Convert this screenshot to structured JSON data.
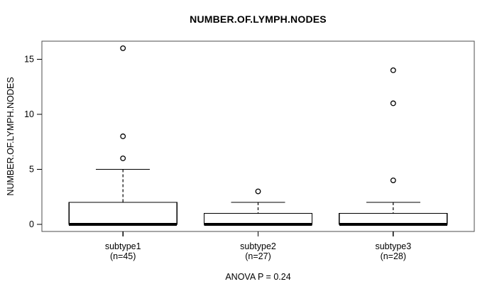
{
  "figure": {
    "title": "NUMBER.OF.LYMPH.NODES",
    "y_axis_label": "NUMBER.OF.LYMPH.NODES",
    "annotation": "ANOVA P = 0.24"
  },
  "chart_data": {
    "type": "boxplot",
    "title": "NUMBER.OF.LYMPH.NODES",
    "xlabel": "",
    "ylabel": "NUMBER.OF.LYMPH.NODES",
    "ylim": [
      -0.64,
      16.64
    ],
    "yticks": [
      0,
      5,
      10,
      15
    ],
    "grid": false,
    "legend": false,
    "annotation": "ANOVA P = 0.24",
    "groups": [
      {
        "label": "subtype1",
        "sublabel": "(n=45)",
        "n": 45,
        "q1": 0,
        "median": 0,
        "q3": 2,
        "whisker_low": 0,
        "whisker_high": 5,
        "outliers": [
          6,
          8,
          16
        ]
      },
      {
        "label": "subtype2",
        "sublabel": "(n=27)",
        "n": 27,
        "q1": 0,
        "median": 0,
        "q3": 1,
        "whisker_low": 0,
        "whisker_high": 2,
        "outliers": [
          3
        ]
      },
      {
        "label": "subtype3",
        "sublabel": "(n=28)",
        "n": 28,
        "q1": 0,
        "median": 0,
        "q3": 1,
        "whisker_low": 0,
        "whisker_high": 2,
        "outliers": [
          4,
          11,
          14
        ]
      }
    ],
    "colors": {
      "box_fill": "#ffffff",
      "box_line": "#000000",
      "frame": "#4d4d4d",
      "background": "#ffffff"
    }
  }
}
